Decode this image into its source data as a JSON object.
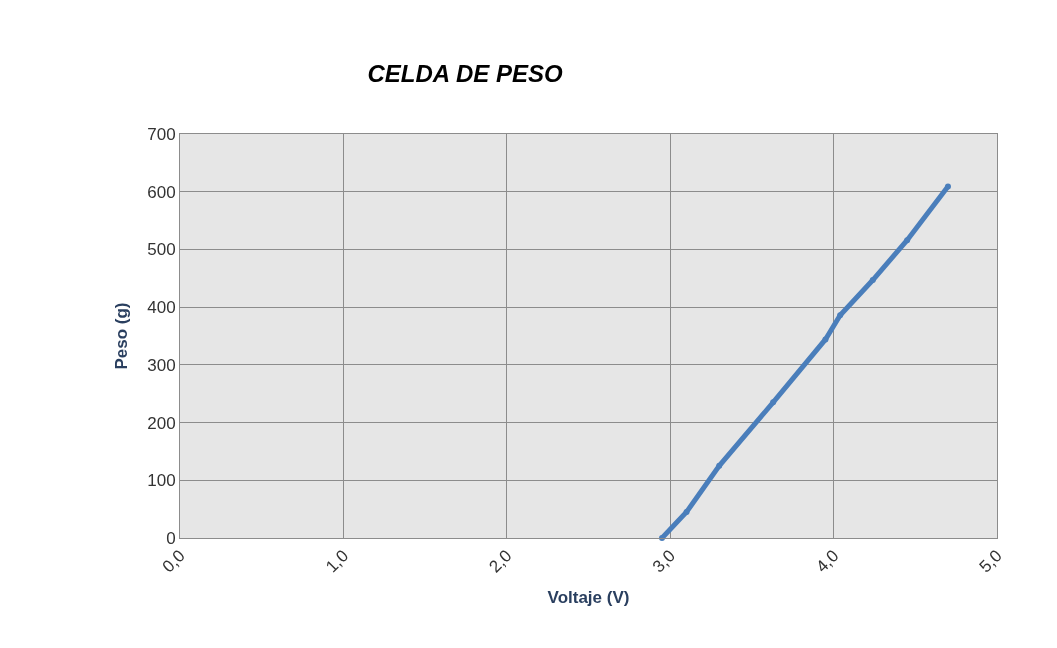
{
  "chart_data": {
    "type": "line",
    "title": "CELDA DE PESO",
    "xlabel": "Voltaje (V)",
    "ylabel": "Peso (g)",
    "x": [
      2.95,
      3.1,
      3.3,
      3.63,
      3.95,
      4.04,
      4.24,
      4.45,
      4.7
    ],
    "series": [
      {
        "color": "#4a7ebb",
        "values": [
          0,
          45,
          125,
          235,
          344,
          386,
          447,
          516,
          609
        ]
      }
    ],
    "xlim": [
      0,
      5
    ],
    "xticks": [
      {
        "value": 0,
        "label": "0,0"
      },
      {
        "value": 1,
        "label": "1,0"
      },
      {
        "value": 2,
        "label": "2,0"
      },
      {
        "value": 3,
        "label": "3,0"
      },
      {
        "value": 4,
        "label": "4,0"
      },
      {
        "value": 5,
        "label": "5,0"
      }
    ],
    "ylim": [
      0,
      700
    ],
    "yticks": [
      0,
      100,
      200,
      300,
      400,
      500,
      600,
      700
    ],
    "grid": true,
    "marker": "circle",
    "line_style": "solid"
  }
}
